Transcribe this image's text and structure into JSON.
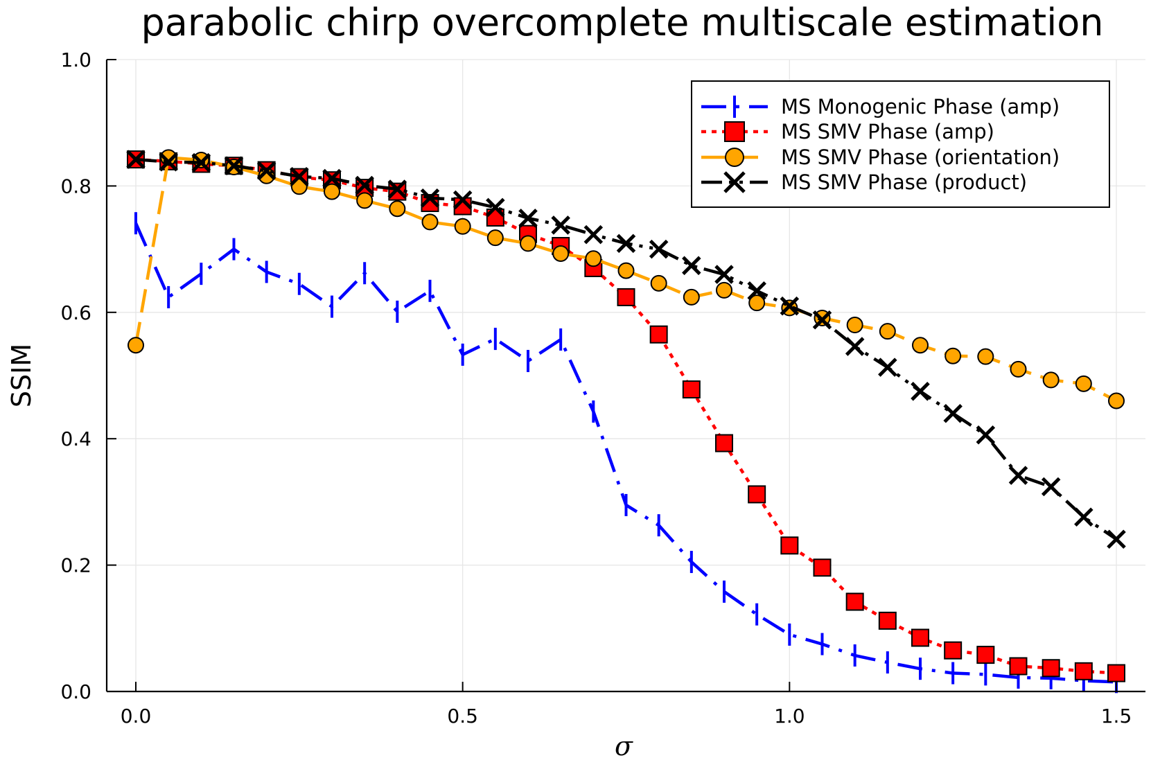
{
  "chart_data": {
    "type": "line",
    "title": "parabolic chirp overcomplete multiscale estimation",
    "xlabel": "σ",
    "ylabel": "SSIM",
    "xlim": [
      -0.045,
      1.545
    ],
    "ylim": [
      0.0,
      1.0
    ],
    "xticks": [
      0.0,
      0.5,
      1.0,
      1.5
    ],
    "xtick_labels": [
      "0.0",
      "0.5",
      "1.0",
      "1.5"
    ],
    "yticks": [
      0.0,
      0.2,
      0.4,
      0.6,
      0.8,
      1.0
    ],
    "ytick_labels": [
      "0.0",
      "0.2",
      "0.4",
      "0.6",
      "0.8",
      "1.0"
    ],
    "grid": true,
    "legend_position": "top-right",
    "x": [
      0.0,
      0.05,
      0.1,
      0.15,
      0.2,
      0.25,
      0.3,
      0.35,
      0.4,
      0.45,
      0.5,
      0.55,
      0.6,
      0.65,
      0.7,
      0.75,
      0.8,
      0.85,
      0.9,
      0.95,
      1.0,
      1.05,
      1.1,
      1.15,
      1.2,
      1.25,
      1.3,
      1.35,
      1.4,
      1.45,
      1.5
    ],
    "series": [
      {
        "name": "MS Monogenic Phase (amp)",
        "color": "#0000ff",
        "line_style": "dashdot",
        "marker": "vline",
        "values": [
          0.741,
          0.624,
          0.661,
          0.7,
          0.664,
          0.645,
          0.609,
          0.662,
          0.601,
          0.634,
          0.533,
          0.558,
          0.523,
          0.557,
          0.443,
          0.295,
          0.263,
          0.205,
          0.158,
          0.122,
          0.09,
          0.075,
          0.057,
          0.046,
          0.036,
          0.029,
          0.027,
          0.022,
          0.021,
          0.017,
          0.015
        ]
      },
      {
        "name": "MS SMV Phase (amp)",
        "color": "#ff0000",
        "line_style": "dot",
        "marker": "square",
        "values": [
          0.842,
          0.839,
          0.835,
          0.832,
          0.825,
          0.814,
          0.809,
          0.797,
          0.791,
          0.773,
          0.768,
          0.75,
          0.724,
          0.705,
          0.67,
          0.624,
          0.565,
          0.478,
          0.393,
          0.312,
          0.231,
          0.196,
          0.142,
          0.112,
          0.085,
          0.065,
          0.058,
          0.04,
          0.037,
          0.032,
          0.029
        ]
      },
      {
        "name": "MS SMV Phase (orientation)",
        "color": "#ffa500",
        "line_style": "dash",
        "marker": "circle",
        "values": [
          0.548,
          0.845,
          0.841,
          0.83,
          0.816,
          0.799,
          0.791,
          0.777,
          0.764,
          0.743,
          0.736,
          0.718,
          0.709,
          0.693,
          0.685,
          0.666,
          0.646,
          0.624,
          0.635,
          0.615,
          0.607,
          0.591,
          0.58,
          0.57,
          0.548,
          0.531,
          0.53,
          0.51,
          0.493,
          0.487,
          0.46
        ]
      },
      {
        "name": "MS SMV Phase (product)",
        "color": "#000000",
        "line_style": "dashdotdot",
        "marker": "x",
        "values": [
          0.842,
          0.838,
          0.837,
          0.832,
          0.824,
          0.815,
          0.812,
          0.801,
          0.795,
          0.781,
          0.778,
          0.766,
          0.749,
          0.738,
          0.723,
          0.709,
          0.7,
          0.674,
          0.66,
          0.634,
          0.61,
          0.588,
          0.546,
          0.513,
          0.475,
          0.44,
          0.406,
          0.342,
          0.324,
          0.276,
          0.241
        ]
      }
    ]
  }
}
